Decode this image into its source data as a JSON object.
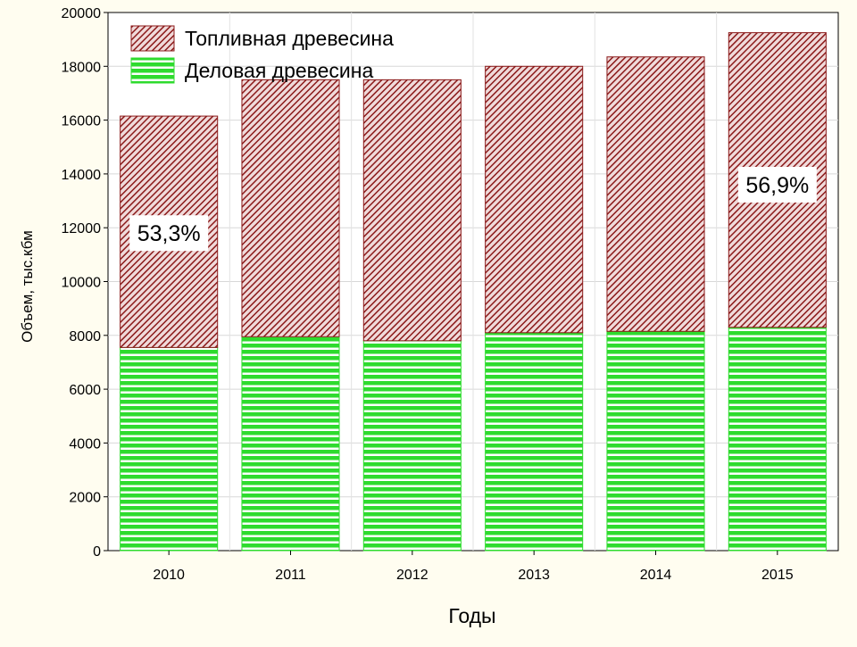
{
  "chart_data": {
    "type": "bar",
    "stacked": true,
    "title": "",
    "xlabel": "Годы",
    "ylabel": "Объем, тыс.кбм",
    "categories": [
      "2010",
      "2011",
      "2012",
      "2013",
      "2014",
      "2015"
    ],
    "ylim": [
      0,
      20000
    ],
    "yticks": [
      "0",
      "2000",
      "4000",
      "6000",
      "8000",
      "10000",
      "12000",
      "14000",
      "16000",
      "18000",
      "20000"
    ],
    "series": [
      {
        "name": "Деловая древесина",
        "values": [
          7550,
          7950,
          7800,
          8100,
          8150,
          8300
        ],
        "color": "#2edb2e",
        "pattern": "horizontal-stripes"
      },
      {
        "name": "Топливная древесина",
        "values": [
          8600,
          9550,
          9700,
          9900,
          10200,
          10950
        ],
        "color": "#8b1a1a",
        "pattern": "diagonal-hatch"
      }
    ],
    "legend_order": [
      1,
      0
    ],
    "legend_position": "top-left",
    "grid": true,
    "annotations": [
      {
        "text": "53,3%",
        "category": "2010"
      },
      {
        "text": "56,9%",
        "category": "2015"
      }
    ]
  }
}
